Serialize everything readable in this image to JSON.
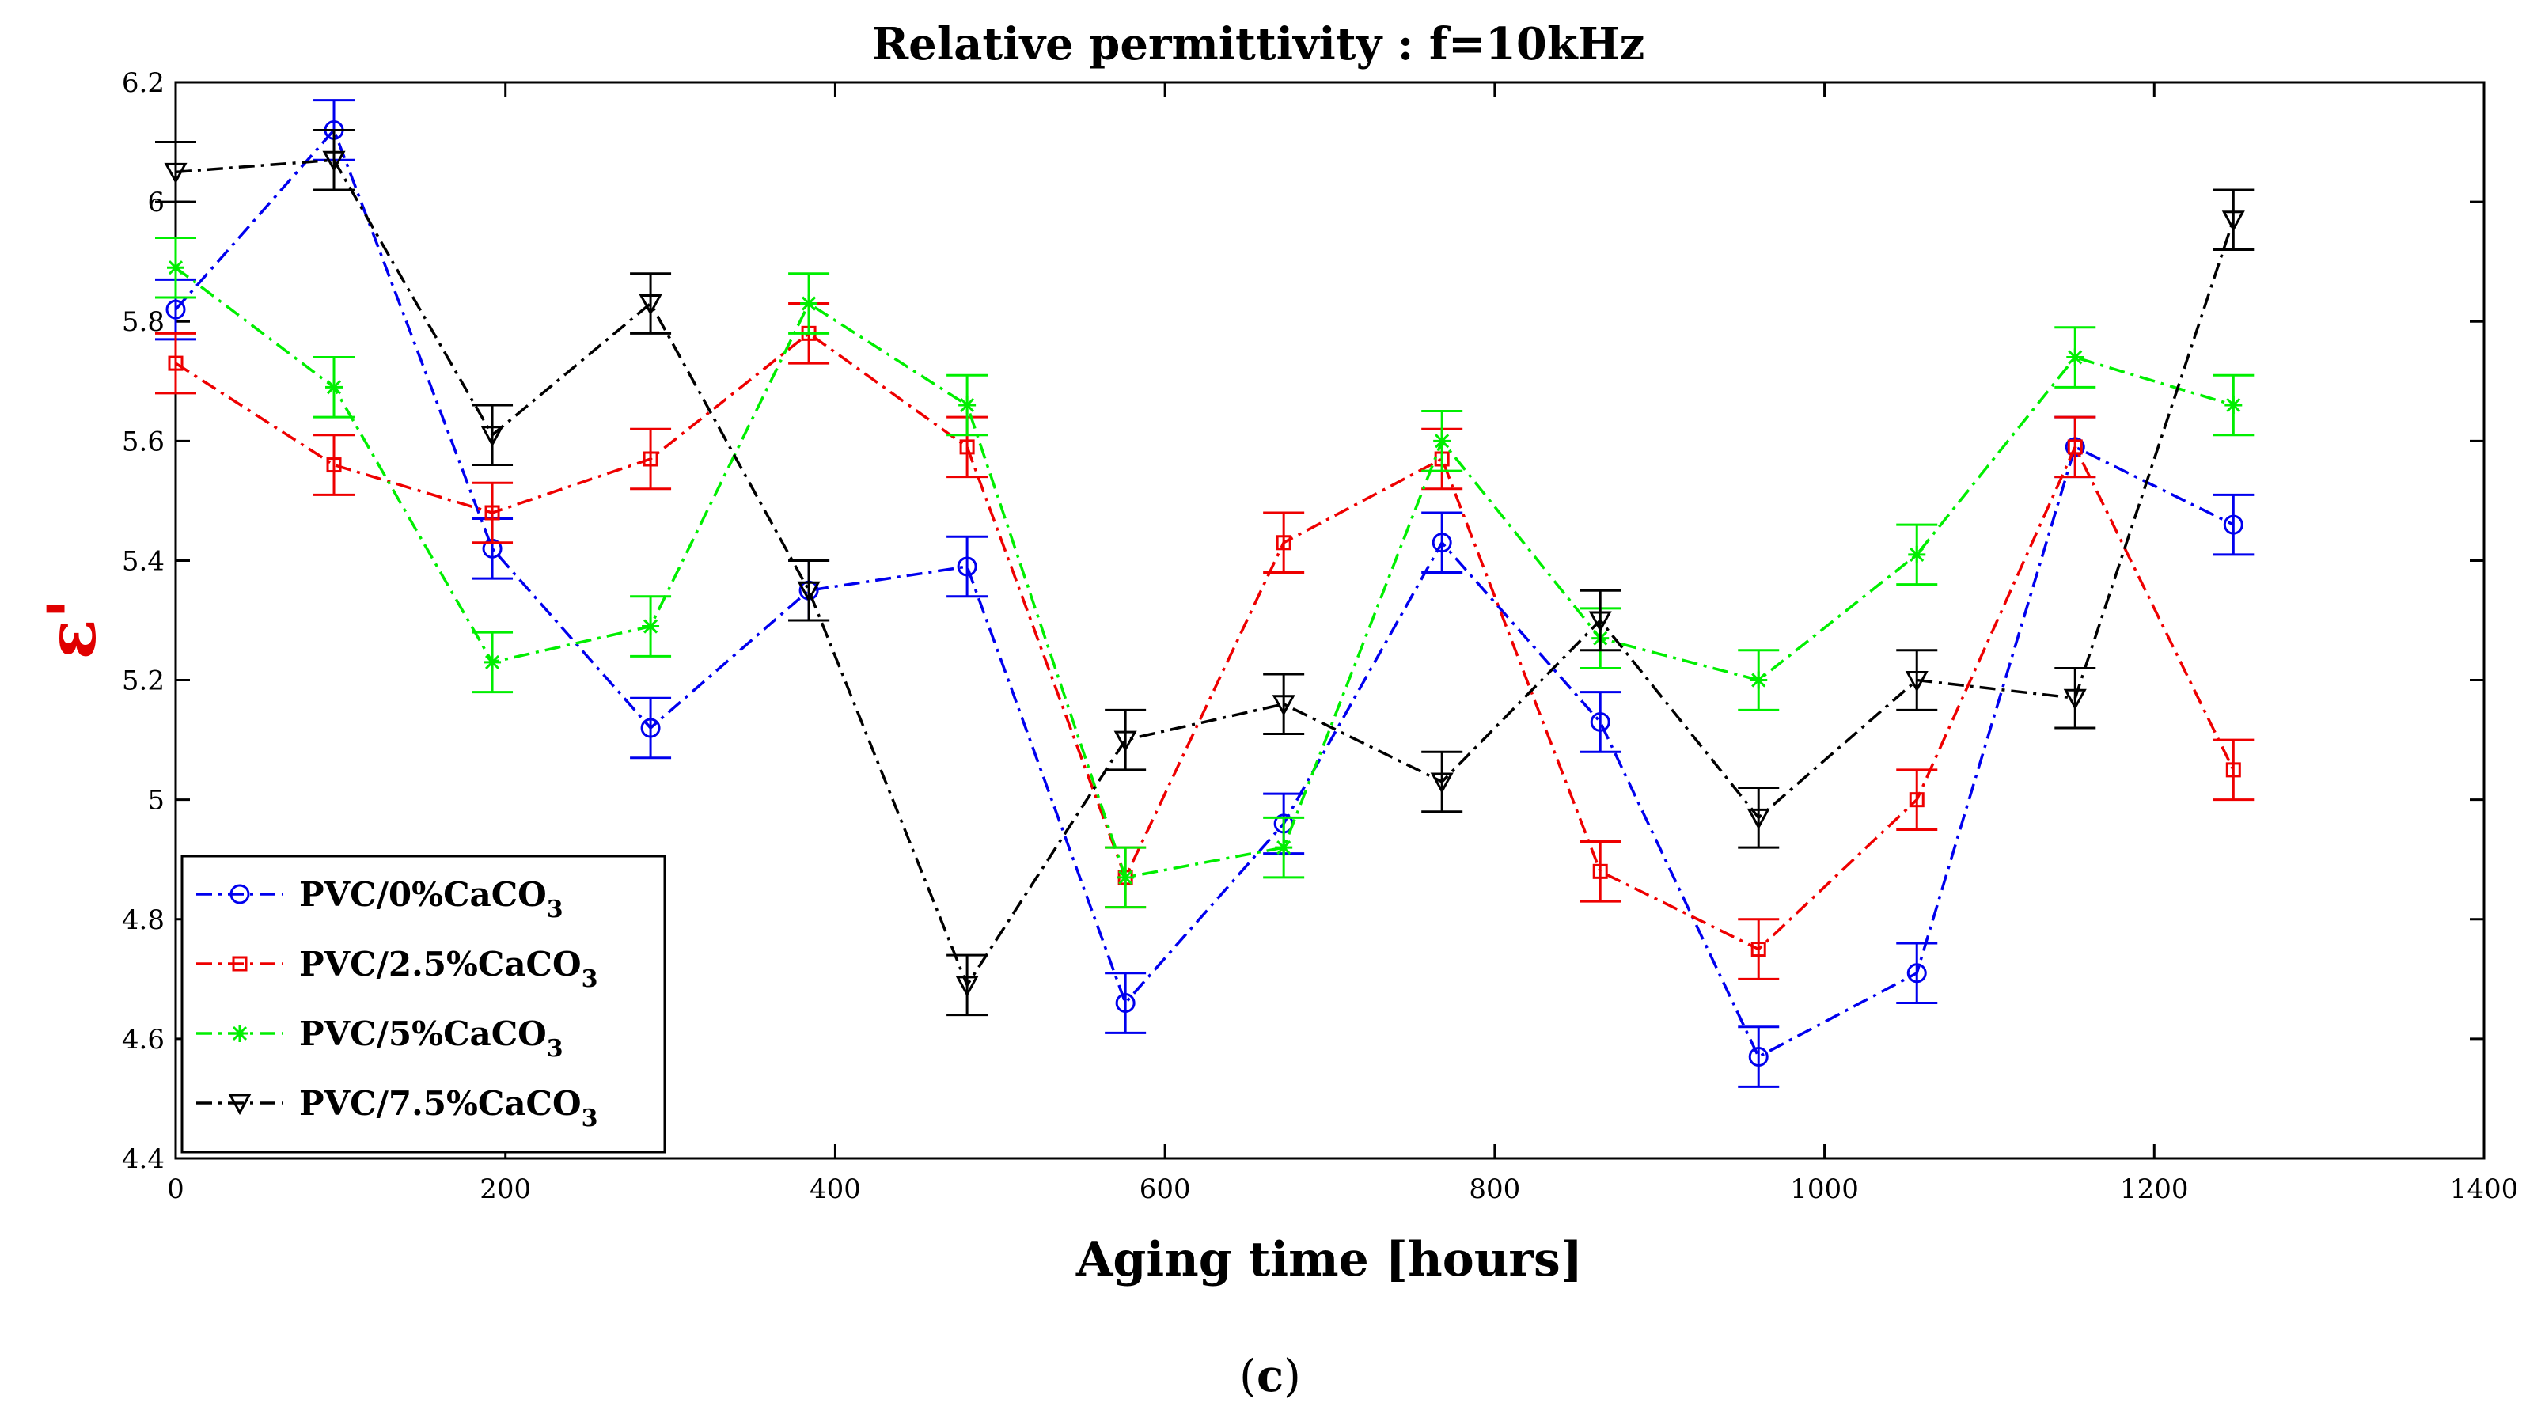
{
  "chart_data": {
    "type": "line",
    "title": "Relative permittivity : f=10kHz",
    "xlabel": "Aging time [hours]",
    "ylabel": "ε'",
    "ylabel_color": "#e00000",
    "xlim": [
      0,
      1400
    ],
    "ylim": [
      4.4,
      6.2
    ],
    "xticks": [
      0,
      200,
      400,
      600,
      800,
      1000,
      1200,
      1400
    ],
    "xtick_labels": [
      "0",
      "200",
      "400",
      "600",
      "800",
      "1000",
      "1200",
      "1400"
    ],
    "yticks": [
      4.4,
      4.6,
      4.8,
      5.0,
      5.2,
      5.4,
      5.6,
      5.8,
      6.0,
      6.2
    ],
    "ytick_labels": [
      "4.4",
      "4.6",
      "4.8",
      "5",
      "5.2",
      "5.4",
      "5.6",
      "5.8",
      "6",
      "6.2"
    ],
    "grid": false,
    "legend_position": "bottom-left",
    "error_bar": 0.05,
    "x": [
      0,
      96,
      192,
      288,
      384,
      480,
      576,
      672,
      768,
      864,
      960,
      1056,
      1152,
      1248
    ],
    "series": [
      {
        "name_main": "PVC/0%CaCO",
        "name_sub": "3",
        "color": "#0000ee",
        "marker": "circle",
        "values": [
          5.82,
          6.12,
          5.42,
          5.12,
          5.35,
          5.39,
          4.66,
          4.96,
          5.43,
          5.13,
          4.57,
          4.71,
          5.59,
          5.46
        ]
      },
      {
        "name_main": "PVC/2.5%CaCO",
        "name_sub": "3",
        "color": "#ee0000",
        "marker": "square",
        "values": [
          5.73,
          5.56,
          5.48,
          5.57,
          5.78,
          5.59,
          4.87,
          5.43,
          5.57,
          4.88,
          4.75,
          5.0,
          5.59,
          5.05
        ]
      },
      {
        "name_main": "PVC/5%CaCO",
        "name_sub": "3",
        "color": "#00ee00",
        "marker": "star",
        "values": [
          5.89,
          5.69,
          5.23,
          5.29,
          5.83,
          5.66,
          4.87,
          4.92,
          5.6,
          5.27,
          5.2,
          5.41,
          5.74,
          5.66
        ]
      },
      {
        "name_main": "PVC/7.5%CaCO",
        "name_sub": "3",
        "color": "#000000",
        "marker": "triangle-down",
        "values": [
          6.05,
          6.07,
          5.61,
          5.83,
          5.35,
          4.69,
          5.1,
          5.16,
          5.03,
          5.3,
          4.97,
          5.2,
          5.17,
          5.97
        ]
      }
    ]
  },
  "caption": {
    "open": "(",
    "letter": "c",
    "close": ")"
  }
}
